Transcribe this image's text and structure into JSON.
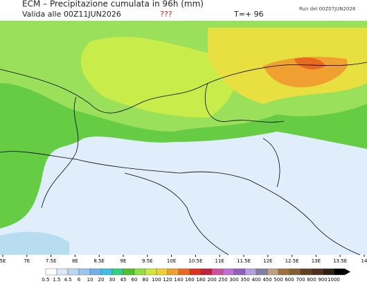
{
  "header": {
    "title": "ECM – Precipitazione cumulata in 96h (mm)",
    "valid": "Valida alle 00Z11JUN2026",
    "unknown": "???",
    "lead": "T=+ 96",
    "run": "Run del 00Z07JUN2026"
  },
  "x_axis": {
    "labels": [
      "5E",
      "7E",
      "7.5E",
      "8E",
      "8.5E",
      "9E",
      "9.5E",
      "10E",
      "10.5E",
      "11E",
      "11.5E",
      "12E",
      "12.5E",
      "13E",
      "13.5E",
      "14"
    ]
  },
  "legend": {
    "labels": [
      "0.5",
      "1.5",
      "4.5",
      "6",
      "10",
      "20",
      "30",
      "45",
      "60",
      "80",
      "100",
      "120",
      "140",
      "160",
      "180",
      "200",
      "250",
      "300",
      "350",
      "400",
      "450",
      "500",
      "600",
      "700",
      "800",
      "900",
      "1000"
    ]
  }
}
